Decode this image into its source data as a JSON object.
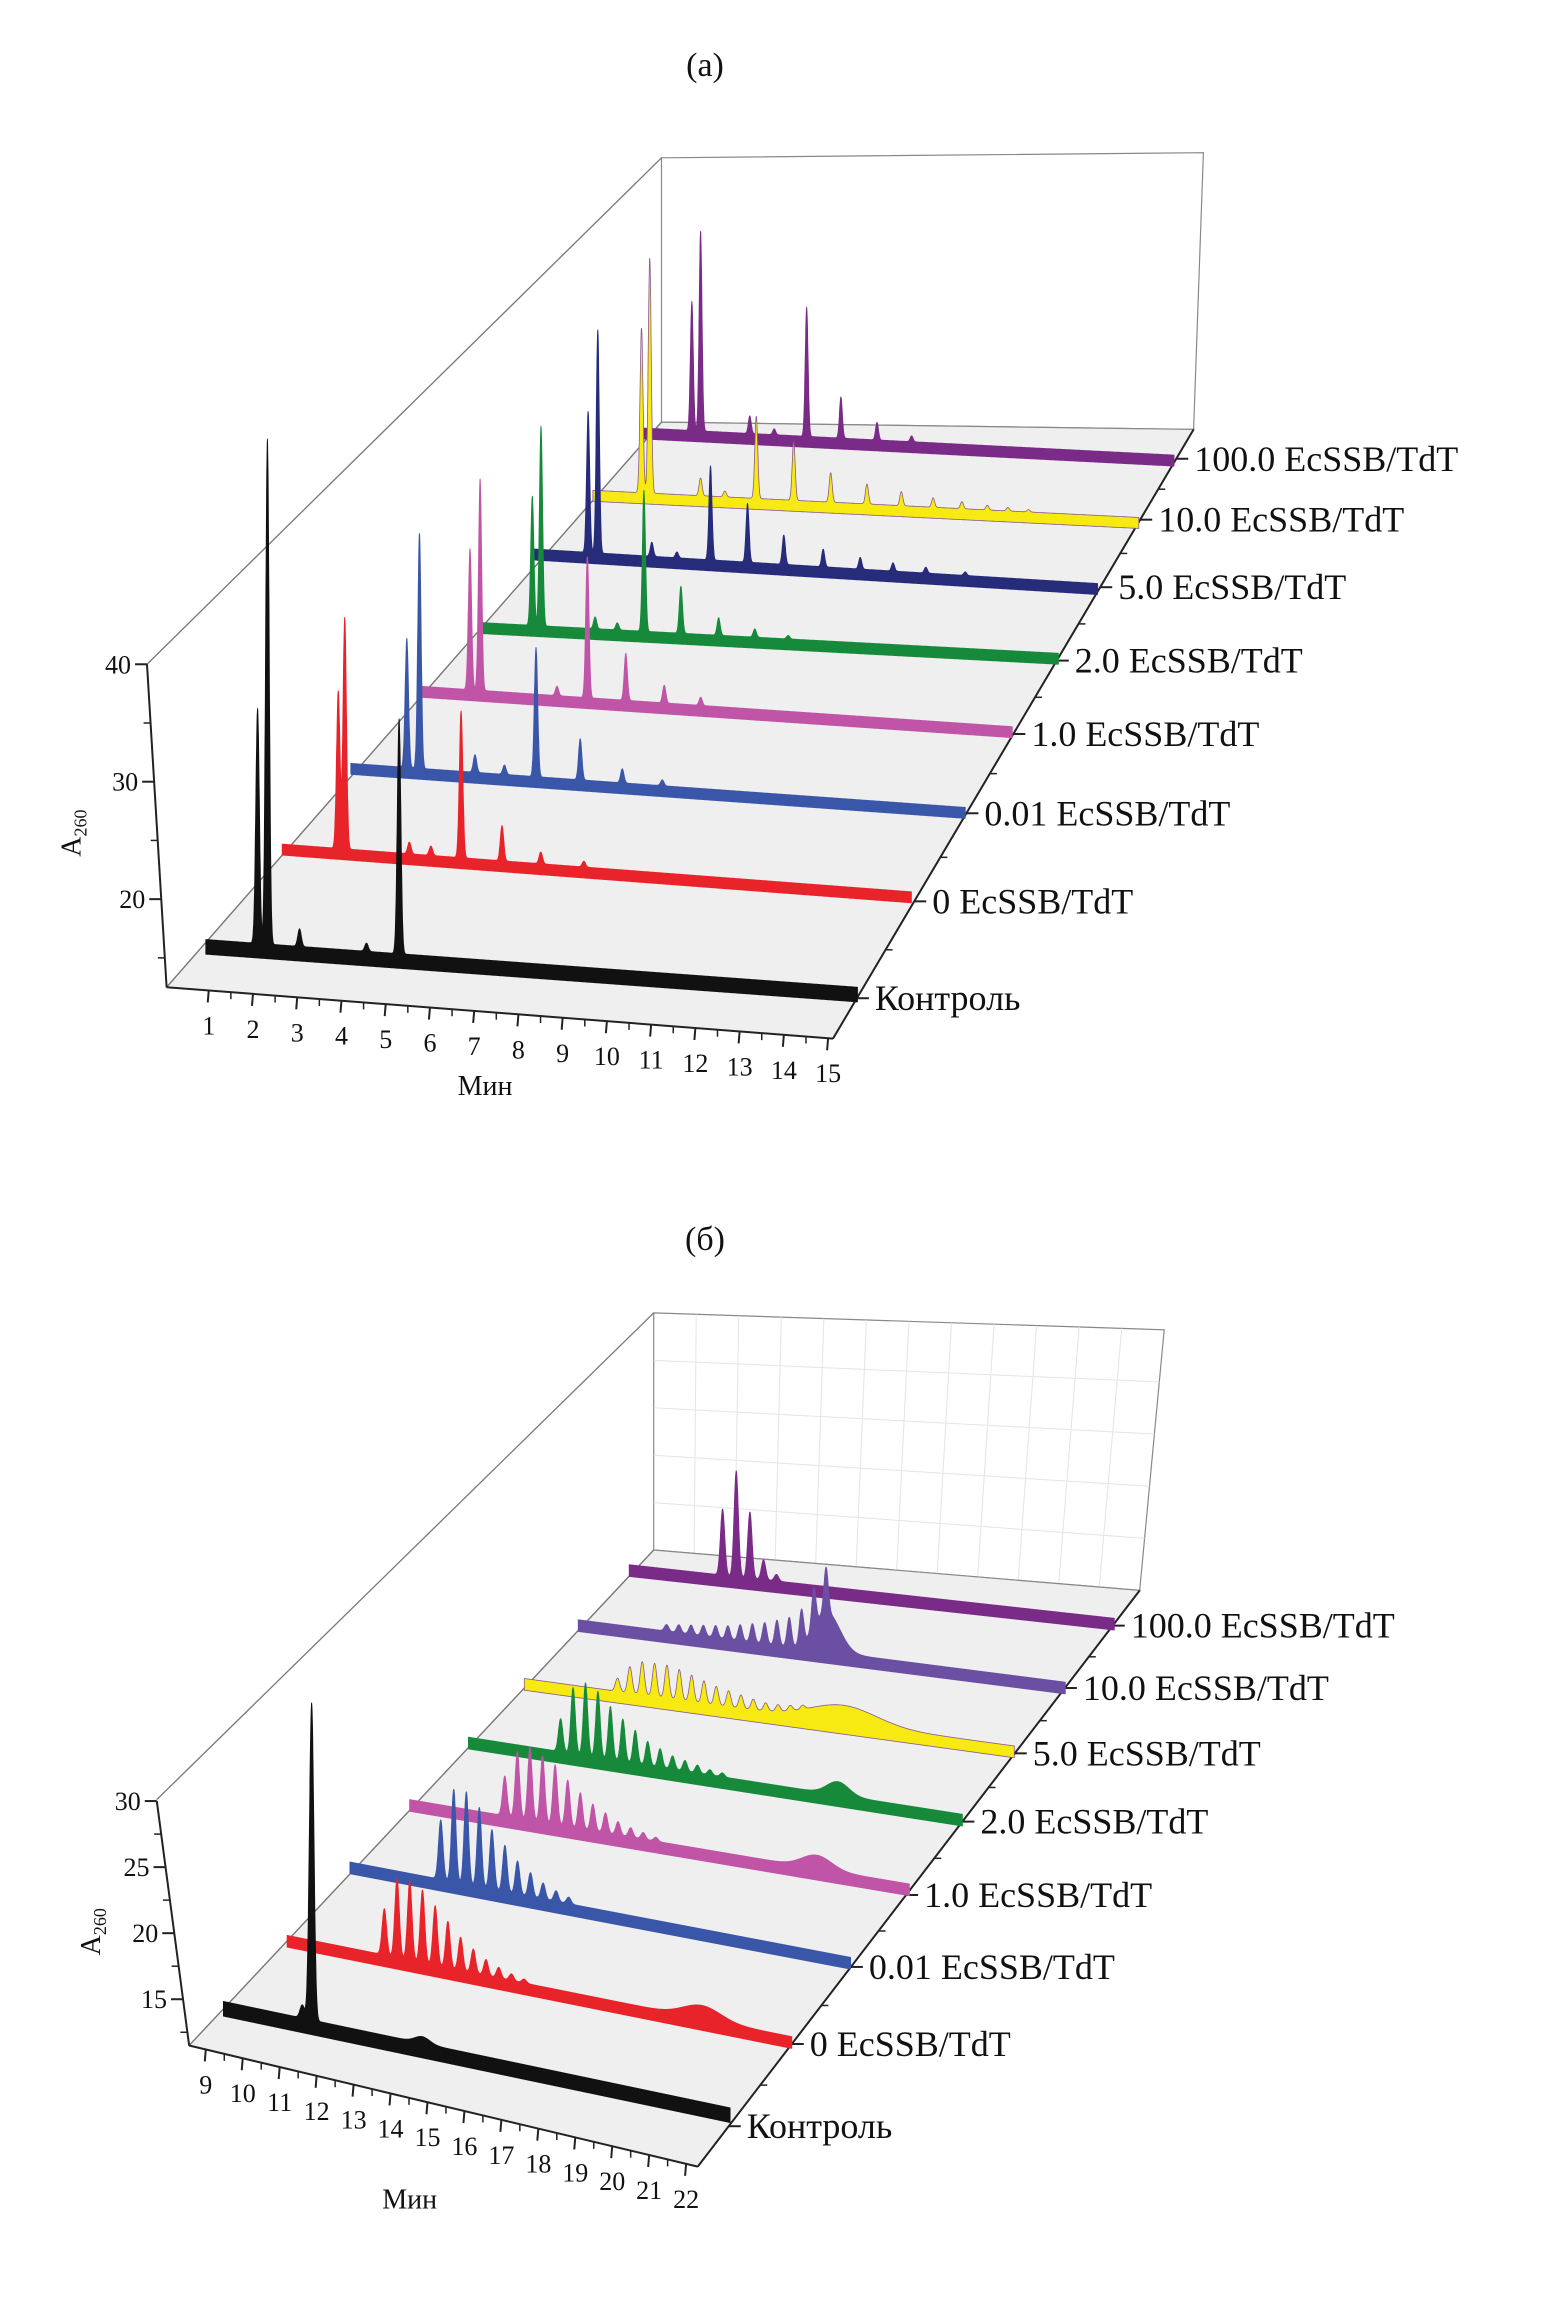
{
  "chart_data": [
    {
      "type": "area",
      "subtype": "3d-waterfall",
      "title": "(a)",
      "xlabel": "Мин",
      "ylabel": "A",
      "ylabel_subscript": "260",
      "xlim": [
        1,
        15
      ],
      "ylim": [
        15,
        40
      ],
      "xticks": [
        "1",
        "2",
        "3",
        "4",
        "5",
        "6",
        "7",
        "8",
        "9",
        "10",
        "11",
        "12",
        "13",
        "14",
        "15"
      ],
      "yticks": [
        "20",
        "30",
        "40"
      ],
      "grid": false,
      "series": [
        {
          "name": "Контроль",
          "color": "#111111",
          "peaks": [
            [
              2.06,
              20
            ],
            [
              2.28,
              43
            ],
            [
              3.0,
              1.5
            ],
            [
              4.5,
              0.7
            ],
            [
              5.23,
              20
            ]
          ]
        },
        {
          "name": "0 EcSSB/TdT",
          "color": "#e8232a",
          "peaks": [
            [
              2.2,
              13.4
            ],
            [
              2.35,
              19.7
            ],
            [
              3.85,
              1
            ],
            [
              4.35,
              0.8
            ],
            [
              5.05,
              12.5
            ],
            [
              6.0,
              3
            ],
            [
              6.9,
              1
            ],
            [
              7.9,
              0.5
            ]
          ]
        },
        {
          "name": "0.01 EcSSB/TdT",
          "color": "#3a56a8",
          "peaks": [
            [
              2.23,
              11
            ],
            [
              2.53,
              20
            ],
            [
              3.85,
              1.5
            ],
            [
              4.55,
              0.8
            ],
            [
              5.3,
              11
            ],
            [
              6.35,
              3.5
            ],
            [
              7.35,
              1.2
            ],
            [
              8.3,
              0.5
            ]
          ]
        },
        {
          "name": "1.0 EcSSB/TdT",
          "color": "#c054a6",
          "peaks": [
            [
              2.1,
              12
            ],
            [
              2.35,
              18
            ],
            [
              4.25,
              0.8
            ],
            [
              5.0,
              12
            ],
            [
              5.95,
              4
            ],
            [
              6.9,
              1.5
            ],
            [
              7.8,
              0.7
            ]
          ]
        },
        {
          "name": "2.0 EcSSB/TdT",
          "color": "#168a3a",
          "peaks": [
            [
              2.26,
              11
            ],
            [
              2.48,
              17
            ],
            [
              3.84,
              1
            ],
            [
              4.4,
              0.6
            ],
            [
              5.07,
              12
            ],
            [
              6.0,
              4
            ],
            [
              6.95,
              1.5
            ],
            [
              7.86,
              0.7
            ],
            [
              8.7,
              0.3
            ]
          ]
        },
        {
          "name": "5.0 EcSSB/TdT",
          "color": "#262b7a",
          "peaks": [
            [
              2.3,
              12
            ],
            [
              2.55,
              19
            ],
            [
              3.95,
              1.2
            ],
            [
              4.6,
              0.5
            ],
            [
              5.47,
              8
            ],
            [
              6.43,
              5
            ],
            [
              7.37,
              2.5
            ],
            [
              8.39,
              1.5
            ],
            [
              9.35,
              1
            ],
            [
              10.2,
              0.7
            ],
            [
              11.05,
              0.5
            ],
            [
              12.07,
              0.3
            ]
          ]
        },
        {
          "name": "10.0 EcSSB/TdT",
          "color": "#f6ea12",
          "peaks": [
            [
              2.2,
              14
            ],
            [
              2.42,
              20
            ],
            [
              3.78,
              1.5
            ],
            [
              4.43,
              0.5
            ],
            [
              5.27,
              7
            ],
            [
              6.27,
              5
            ],
            [
              7.26,
              2.5
            ],
            [
              8.23,
              1.7
            ],
            [
              9.15,
              1.2
            ],
            [
              10.0,
              0.8
            ],
            [
              10.77,
              0.6
            ],
            [
              11.45,
              0.4
            ],
            [
              12.0,
              0.3
            ],
            [
              12.55,
              0.2
            ]
          ]
        },
        {
          "name": "100.0 EcSSB/TdT",
          "color": "#7a2a87",
          "peaks": [
            [
              2.27,
              11
            ],
            [
              2.51,
              17
            ],
            [
              3.86,
              1.5
            ],
            [
              4.53,
              0.5
            ],
            [
              5.42,
              11
            ],
            [
              6.36,
              3.5
            ],
            [
              7.35,
              1.5
            ],
            [
              8.3,
              0.5
            ]
          ]
        }
      ]
    },
    {
      "type": "area",
      "subtype": "3d-waterfall",
      "title": "(б)",
      "xlabel": "Мин",
      "ylabel": "A",
      "ylabel_subscript": "260",
      "xlim": [
        9,
        22
      ],
      "ylim": [
        12,
        30
      ],
      "xticks": [
        "9",
        "10",
        "11",
        "12",
        "13",
        "14",
        "15",
        "16",
        "17",
        "18",
        "19",
        "20",
        "21",
        "22"
      ],
      "yticks": [
        "15",
        "20",
        "25",
        "30"
      ],
      "grid": true,
      "series": [
        {
          "name": "Контроль",
          "color": "#111111",
          "peaks": [
            [
              11.1,
              1
            ],
            [
              11.35,
              24
            ]
          ],
          "broad_peaks": [
            [
              14.3,
              0.5,
              0.2
            ]
          ]
        },
        {
          "name": "0 EcSSB/TdT",
          "color": "#e8232a",
          "peaks": [
            [
              11.6,
              3.5
            ],
            [
              11.94,
              6
            ],
            [
              12.28,
              6
            ],
            [
              12.62,
              5.5
            ],
            [
              12.96,
              4.5
            ],
            [
              13.3,
              3.5
            ],
            [
              13.64,
              2.5
            ],
            [
              13.98,
              1.8
            ],
            [
              14.32,
              1.2
            ],
            [
              14.66,
              0.8
            ],
            [
              15.0,
              0.5
            ],
            [
              15.34,
              0.3
            ]
          ],
          "broad_peaks": [
            [
              20.1,
              1,
              0.5
            ]
          ]
        },
        {
          "name": "0.01 EcSSB/TdT",
          "color": "#3a56a8",
          "peaks": [
            [
              11.45,
              4.5
            ],
            [
              11.8,
              7
            ],
            [
              12.14,
              7
            ],
            [
              12.49,
              6
            ],
            [
              12.83,
              4.5
            ],
            [
              13.18,
              3.5
            ],
            [
              13.52,
              2.5
            ],
            [
              13.87,
              1.8
            ],
            [
              14.21,
              1.2
            ],
            [
              14.56,
              0.8
            ],
            [
              14.9,
              0.5
            ]
          ],
          "broad_peaks": []
        },
        {
          "name": "1.0 EcSSB/TdT",
          "color": "#c054a6",
          "peaks": [
            [
              11.57,
              3
            ],
            [
              11.91,
              5
            ],
            [
              12.25,
              5.5
            ],
            [
              12.59,
              5
            ],
            [
              12.93,
              4.5
            ],
            [
              13.27,
              3.5
            ],
            [
              13.61,
              2.7
            ],
            [
              13.95,
              2
            ],
            [
              14.29,
              1.5
            ],
            [
              14.63,
              1
            ],
            [
              14.97,
              0.7
            ],
            [
              15.31,
              0.5
            ],
            [
              15.65,
              0.3
            ]
          ],
          "broad_peaks": [
            [
              20.0,
              1,
              0.4
            ]
          ]
        },
        {
          "name": "2.0 EcSSB/TdT",
          "color": "#168a3a",
          "peaks": [
            [
              11.52,
              2.5
            ],
            [
              11.86,
              5
            ],
            [
              12.2,
              5.5
            ],
            [
              12.54,
              5
            ],
            [
              12.88,
              4
            ],
            [
              13.22,
              3.2
            ],
            [
              13.56,
              2.5
            ],
            [
              13.9,
              1.8
            ],
            [
              14.24,
              1.4
            ],
            [
              14.58,
              1
            ],
            [
              14.92,
              0.8
            ],
            [
              15.26,
              0.6
            ],
            [
              15.6,
              0.4
            ],
            [
              15.94,
              0.3
            ]
          ],
          "broad_peaks": [
            [
              19.1,
              1,
              0.3
            ]
          ]
        },
        {
          "name": "5.0 EcSSB/TdT",
          "color": "#f6ea12",
          "peaks": [
            [
              11.57,
              1
            ],
            [
              11.91,
              2
            ],
            [
              12.25,
              2.5
            ],
            [
              12.59,
              2.5
            ],
            [
              12.93,
              2.5
            ],
            [
              13.27,
              2.3
            ],
            [
              13.61,
              2
            ],
            [
              13.95,
              1.7
            ],
            [
              14.29,
              1.4
            ],
            [
              14.63,
              1.2
            ],
            [
              14.97,
              1
            ],
            [
              15.31,
              0.8
            ],
            [
              15.65,
              0.6
            ],
            [
              15.99,
              0.5
            ],
            [
              16.33,
              0.4
            ],
            [
              16.67,
              0.3
            ]
          ],
          "broad_peaks": [
            [
              17.8,
              1.3,
              0.9
            ]
          ]
        },
        {
          "name": "10.0 EcSSB/TdT",
          "color": "#6a4fa3",
          "peaks": [
            [
              11.45,
              0.5
            ],
            [
              11.79,
              0.6
            ],
            [
              12.13,
              0.7
            ],
            [
              12.47,
              0.8
            ],
            [
              12.81,
              0.9
            ],
            [
              13.15,
              1.0
            ],
            [
              13.49,
              1.2
            ],
            [
              13.83,
              1.4
            ],
            [
              14.17,
              1.6
            ],
            [
              14.51,
              1.9
            ],
            [
              14.85,
              2.2
            ],
            [
              15.19,
              2.6
            ],
            [
              15.53,
              3
            ],
            [
              15.87,
              3.4
            ]
          ],
          "broad_peaks": [
            [
              15.9,
              3,
              0.35
            ]
          ]
        },
        {
          "name": "100.0 EcSSB/TdT",
          "color": "#7a2a87",
          "peaks": [
            [
              11.6,
              5
            ],
            [
              11.98,
              8
            ],
            [
              12.36,
              5
            ],
            [
              12.74,
              1.5
            ],
            [
              13.1,
              0.5
            ]
          ],
          "broad_peaks": []
        }
      ]
    }
  ]
}
